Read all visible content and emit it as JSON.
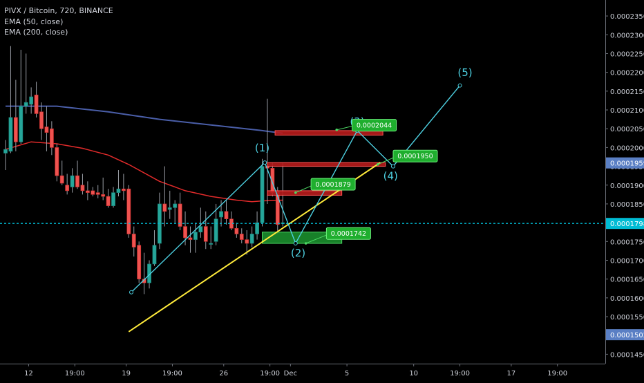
{
  "chart_data": {
    "type": "candlestick",
    "title": "PIVX / Bitcoin, 720, BINANCE",
    "indicators": [
      "EMA (50, close)",
      "EMA (200, close)"
    ],
    "colors": {
      "background": "#000000",
      "up": "#26a69a",
      "down": "#ef5350",
      "ema50": "#e32b2b",
      "ema200": "#4a5ea8",
      "trendline": "#ffeb3b",
      "wave": "#4dd0e1",
      "price_line": "#00bcd4",
      "axis_text": "#d1d4dc"
    },
    "y_axis": {
      "min": 0.0001425,
      "max": 0.00023925,
      "ticks": [
        "0.0002350",
        "0.0002300",
        "0.0002250",
        "0.0002200",
        "0.0002150",
        "0.0002100",
        "0.0002050",
        "0.0002000",
        "0.0001950",
        "0.0001900",
        "0.0001850",
        "0.0001800",
        "0.0001750",
        "0.0001700",
        "0.0001650",
        "0.0001600",
        "0.0001550",
        "0.0001500",
        "0.0001450"
      ]
    },
    "x_axis": {
      "ticks": [
        {
          "label": "12",
          "i": 4.5
        },
        {
          "label": "19:00",
          "i": 13.5
        },
        {
          "label": "19",
          "i": 23.5
        },
        {
          "label": "19:00",
          "i": 32.5
        },
        {
          "label": "26",
          "i": 42.5
        },
        {
          "label": "19:00",
          "i": 51.5
        },
        {
          "label": "Dec",
          "i": 55.5
        },
        {
          "label": "5",
          "i": 66.5
        },
        {
          "label": "10",
          "i": 79.5
        },
        {
          "label": "19:00",
          "i": 88.5
        },
        {
          "label": "17",
          "i": 98.5
        },
        {
          "label": "19:00",
          "i": 107.5
        }
      ]
    },
    "candles": [
      [
        0.0001985,
        0.000202,
        0.000194,
        0.0001995
      ],
      [
        0.000199,
        0.000227,
        0.0001985,
        0.000208
      ],
      [
        0.000208,
        0.000218,
        0.000199,
        0.0002015
      ],
      [
        0.0002015,
        0.000226,
        0.000201,
        0.000211
      ],
      [
        0.000211,
        0.000225,
        0.000209,
        0.000212
      ],
      [
        0.0002115,
        0.000216,
        0.000209,
        0.0002135
      ],
      [
        0.000214,
        0.0002175,
        0.000208,
        0.000209
      ],
      [
        0.0002095,
        0.000212,
        0.000202,
        0.000205
      ],
      [
        0.0002055,
        0.000211,
        0.000199,
        0.000204
      ],
      [
        0.000205,
        0.000207,
        0.000198,
        0.0002
      ],
      [
        0.0002,
        0.000201,
        0.000191,
        0.0001925
      ],
      [
        0.0001925,
        0.0001965,
        0.00019,
        0.0001905
      ],
      [
        0.00019,
        0.000193,
        0.0001875,
        0.0001885
      ],
      [
        0.0001895,
        0.0001945,
        0.000188,
        0.0001925
      ],
      [
        0.0001925,
        0.0001965,
        0.000189,
        0.0001895
      ],
      [
        0.00019,
        0.000193,
        0.0001875,
        0.0001885
      ],
      [
        0.0001885,
        0.000191,
        0.000186,
        0.000188
      ],
      [
        0.0001885,
        0.0001895,
        0.000187,
        0.0001875
      ],
      [
        0.000188,
        0.00019,
        0.0001865,
        0.0001875
      ],
      [
        0.0001875,
        0.000192,
        0.000186,
        0.000187
      ],
      [
        0.000187,
        0.000189,
        0.000184,
        0.0001845
      ],
      [
        0.0001845,
        0.0001895,
        0.000184,
        0.000188
      ],
      [
        0.000188,
        0.000194,
        0.000187,
        0.000189
      ],
      [
        0.000189,
        0.000193,
        0.000186,
        0.0001885
      ],
      [
        0.000189,
        0.00019,
        0.000176,
        0.000177
      ],
      [
        0.000177,
        0.000179,
        0.000171,
        0.0001735
      ],
      [
        0.000174,
        0.000175,
        0.000164,
        0.000165
      ],
      [
        0.000165,
        0.000172,
        0.000161,
        0.000164
      ],
      [
        0.000164,
        0.00017,
        0.0001625,
        0.000169
      ],
      [
        0.000169,
        0.000178,
        0.0001685,
        0.000174
      ],
      [
        0.0001745,
        0.000188,
        0.000173,
        0.000185
      ],
      [
        0.000185,
        0.000195,
        0.000179,
        0.000183
      ],
      [
        0.0001835,
        0.0001885,
        0.000181,
        0.000184
      ],
      [
        0.000184,
        0.000186,
        0.00018,
        0.000185
      ],
      [
        0.000185,
        0.000188,
        0.000178,
        0.000179
      ],
      [
        0.000179,
        0.000183,
        0.000174,
        0.000176
      ],
      [
        0.000176,
        0.000179,
        0.000172,
        0.0001755
      ],
      [
        0.0001755,
        0.00018,
        0.000172,
        0.0001775
      ],
      [
        0.0001775,
        0.000184,
        0.000176,
        0.000179
      ],
      [
        0.000179,
        0.000183,
        0.000173,
        0.000175
      ],
      [
        0.0001745,
        0.000179,
        0.000173,
        0.0001745
      ],
      [
        0.000175,
        0.000185,
        0.000174,
        0.000181
      ],
      [
        0.0001815,
        0.000186,
        0.000179,
        0.000183
      ],
      [
        0.000183,
        0.000186,
        0.0001795,
        0.000181
      ],
      [
        0.000181,
        0.000183,
        0.000178,
        0.0001785
      ],
      [
        0.0001785,
        0.00018,
        0.000176,
        0.000177
      ],
      [
        0.000177,
        0.0001785,
        0.0001745,
        0.0001755
      ],
      [
        0.0001755,
        0.000178,
        0.0001715,
        0.0001745
      ],
      [
        0.0001745,
        0.000179,
        0.0001735,
        0.000177
      ],
      [
        0.000177,
        0.000183,
        0.0001755,
        0.00018
      ],
      [
        0.00018,
        0.000197,
        0.000179,
        0.000195
      ],
      [
        0.000195,
        0.000213,
        0.000185,
        0.0001945
      ],
      [
        0.0001945,
        0.000196,
        0.000187,
        0.000188
      ],
      [
        0.0001885,
        0.0001895,
        0.000177,
        0.0001795
      ],
      [
        0.00018,
        0.000196,
        0.000179,
        0.00018
      ]
    ],
    "ema50": [
      [
        0,
        0.0001995
      ],
      [
        5,
        0.0002015
      ],
      [
        10,
        0.000201
      ],
      [
        15,
        0.0001998
      ],
      [
        20,
        0.000198
      ],
      [
        24,
        0.0001955
      ],
      [
        30,
        0.000191
      ],
      [
        35,
        0.0001885
      ],
      [
        40,
        0.000187
      ],
      [
        45,
        0.000186
      ],
      [
        48,
        0.0001856
      ],
      [
        50,
        0.0001858
      ],
      [
        54,
        0.000186
      ]
    ],
    "ema200": [
      [
        0,
        0.000211
      ],
      [
        10,
        0.000211
      ],
      [
        20,
        0.0002095
      ],
      [
        30,
        0.0002075
      ],
      [
        40,
        0.000206
      ],
      [
        50,
        0.0002045
      ],
      [
        54,
        0.0002038
      ]
    ],
    "trendline": [
      [
        24,
        0.000151
      ],
      [
        73,
        0.000196
      ]
    ],
    "wave_path": [
      [
        24.5,
        0.0001615
      ],
      [
        50.5,
        0.000196
      ],
      [
        56.5,
        0.0001745
      ],
      [
        68.5,
        0.0002045
      ],
      [
        75.5,
        0.000195
      ],
      [
        88.5,
        0.0002165
      ]
    ],
    "wave_labels": [
      {
        "text": "(1)",
        "i": 50.0,
        "price": 0.000199
      },
      {
        "text": "(2)",
        "i": 57.0,
        "price": 0.000171
      },
      {
        "text": "(3)",
        "i": 68.5,
        "price": 0.000206
      },
      {
        "text": "(4)",
        "i": 75.0,
        "price": 0.0001915
      },
      {
        "text": "(5)",
        "i": 89.5,
        "price": 0.000219
      }
    ],
    "zones": [
      {
        "type": "resistance",
        "i_from": 52.5,
        "i_to": 73.5,
        "p_low": 0.0002033,
        "p_high": 0.0002045
      },
      {
        "type": "resistance",
        "i_from": 51.0,
        "i_to": 74.0,
        "p_low": 0.000195,
        "p_high": 0.000196
      },
      {
        "type": "resistance",
        "i_from": 51.0,
        "i_to": 65.5,
        "p_low": 0.0001873,
        "p_high": 0.0001885
      },
      {
        "type": "support",
        "i_from": 50.0,
        "i_to": 65.5,
        "p_low": 0.0001745,
        "p_high": 0.0001775
      }
    ],
    "callouts": [
      {
        "text": "0.0002044",
        "i": 64.5,
        "price": 0.0002047,
        "li": 67.5,
        "lp": 0.0002075
      },
      {
        "text": "0.0001950",
        "i": 72.5,
        "price": 0.0001955,
        "li": 75.5,
        "lp": 0.0001993
      },
      {
        "text": "0.0001879",
        "i": 56.5,
        "price": 0.000188,
        "li": 59.5,
        "lp": 0.0001918
      },
      {
        "text": "0.0001742",
        "i": 58.5,
        "price": 0.0001745,
        "li": 62.5,
        "lp": 0.0001787
      }
    ],
    "price_line": {
      "value": 0.0001798,
      "label": "0.0001798"
    },
    "axis_badges": [
      {
        "label": "0.0001959",
        "value": 0.0001959
      },
      {
        "label": "0.0001502",
        "value": 0.0001502
      }
    ]
  }
}
